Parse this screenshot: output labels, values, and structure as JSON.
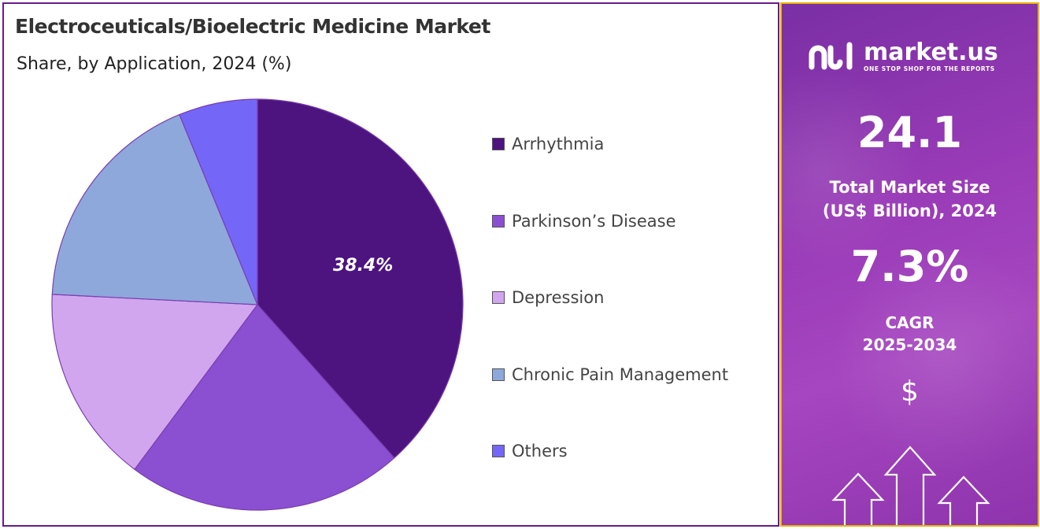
{
  "chart_data": {
    "type": "pie",
    "title": "Electroceuticals/Bioelectric Medicine Market",
    "subtitle": "Share, by Application, 2024 (%)",
    "legend_position": "right",
    "categories": [
      "Arrhythmia",
      "Parkinson’s Disease",
      "Depression",
      "Chronic Pain Management",
      "Others"
    ],
    "values": [
      38.4,
      21.8,
      15.6,
      18.0,
      6.2
    ],
    "colors": [
      "#4d1480",
      "#8b4fd2",
      "#d1a6ef",
      "#8ea8dc",
      "#7466f7"
    ],
    "data_labels": [
      "38.4%",
      "",
      "",
      "",
      ""
    ]
  },
  "info_panel": {
    "brand_name": "market.us",
    "brand_tagline": "ONE STOP SHOP FOR THE REPORTS",
    "market_size_value": "24.1",
    "market_size_label_line1": "Total Market Size",
    "market_size_label_line2": "(US$ Billion), 2024",
    "cagr_value": "7.3%",
    "cagr_label_line1": "CAGR",
    "cagr_label_line2": "2025-2034",
    "currency_symbol": "$",
    "logo_icon": "market-us-logo-icon",
    "decor_icon": "growth-arrows-icon"
  }
}
